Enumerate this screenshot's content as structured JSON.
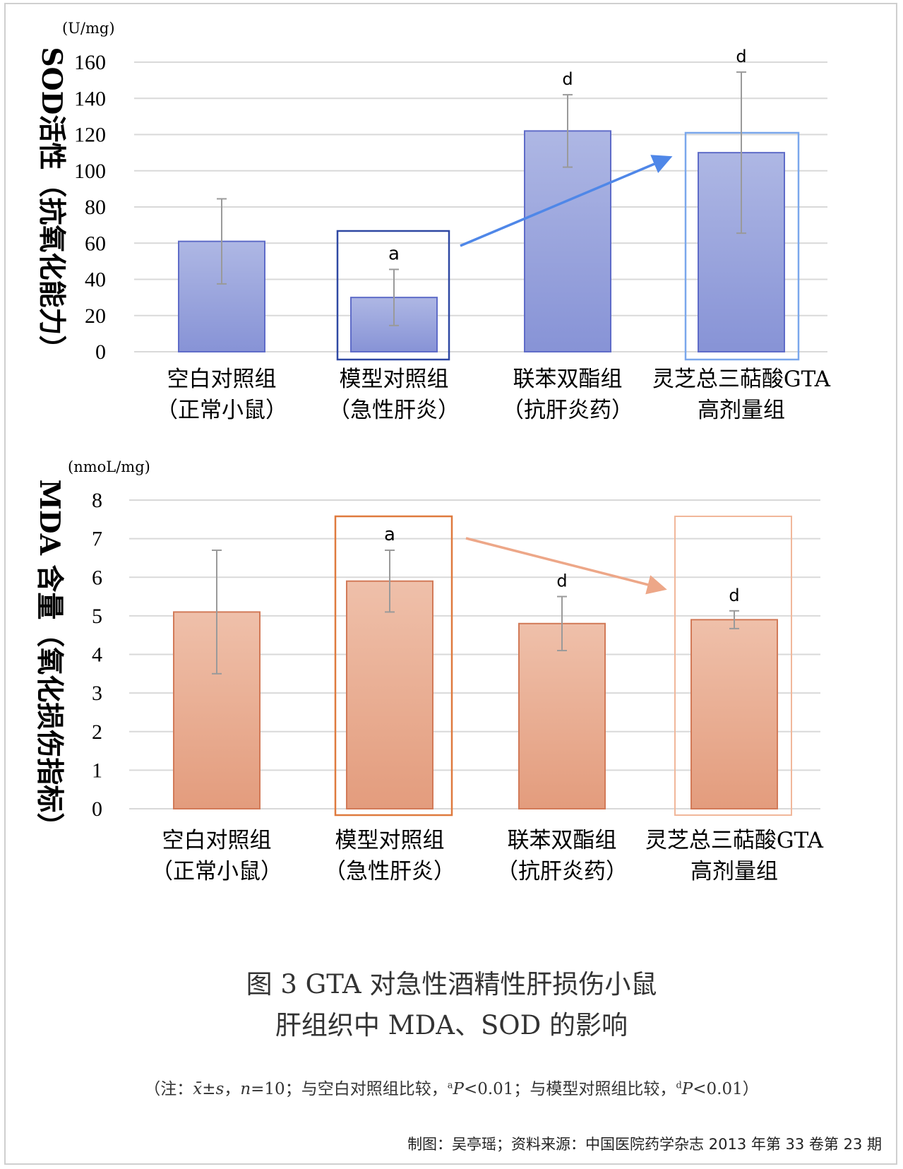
{
  "chart_data": [
    {
      "type": "bar",
      "unit": "(U/mg)",
      "ylabel": "SOD活性（抗氧化能力）",
      "ylim": [
        0,
        160
      ],
      "yticks": [
        0,
        20,
        40,
        60,
        80,
        100,
        120,
        140,
        160
      ],
      "categories": [
        [
          "空白对照组",
          "（正常小鼠）"
        ],
        [
          "模型对照组",
          "（急性肝炎）"
        ],
        [
          "联苯双酯组",
          "（抗肝炎药）"
        ],
        [
          "灵芝总三萜酸GTA",
          "高剂量组"
        ]
      ],
      "values": [
        61,
        30,
        122,
        110
      ],
      "errors": [
        23.5,
        15.5,
        20,
        44.5
      ],
      "marks": [
        "",
        "a",
        "d",
        "d"
      ],
      "grid": true,
      "highlight_boxes": [
        1,
        3
      ],
      "arrow": "from category 2 box to category 4 box",
      "colors": {
        "bar_top": "#aeb7e4",
        "bar_bottom": "#8793d6",
        "bar_border": "#5f6cc8",
        "error": "#9a9a9a",
        "box1": "#2f48a3",
        "box2": "#7aa7ec",
        "arrow": "#4f87e8"
      }
    },
    {
      "type": "bar",
      "unit": "(nmoL/mg)",
      "ylabel": "MDA 含量（氧化损伤指标）",
      "ylim": [
        0,
        8
      ],
      "yticks": [
        0,
        1,
        2,
        3,
        4,
        5,
        6,
        7,
        8
      ],
      "categories": [
        [
          "空白对照组",
          "（正常小鼠）"
        ],
        [
          "模型对照组",
          "（急性肝炎）"
        ],
        [
          "联苯双酯组",
          "（抗肝炎药）"
        ],
        [
          "灵芝总三萜酸GTA",
          "高剂量组"
        ]
      ],
      "values": [
        5.1,
        5.9,
        4.8,
        4.9
      ],
      "errors": [
        1.6,
        0.8,
        0.7,
        0.23
      ],
      "marks": [
        "",
        "a",
        "d",
        "d"
      ],
      "grid": true,
      "highlight_boxes": [
        1,
        3
      ],
      "arrow": "from category 2 box to category 4 box",
      "colors": {
        "bar_top": "#efc0aa",
        "bar_bottom": "#e39c7d",
        "bar_border": "#d27a58",
        "error": "#9a9a9a",
        "box1": "#df7a3e",
        "box2": "#f1b79a",
        "arrow": "#eda788"
      }
    }
  ],
  "caption": {
    "line1": "图 3  GTA 对急性酒精性肝损伤小鼠",
    "line2": "肝组织中 MDA、SOD 的影响"
  },
  "note": {
    "open": "（注：",
    "xbar": "x̄",
    "pm": "±",
    "s": "s",
    "comma1": "，",
    "n": "n",
    "eq": "=10；与空白对照组比较，",
    "sup_a": "a",
    "P1": "P",
    "lt1": "<0.01；与模型对照组比较，",
    "sup_d": "d",
    "P2": "P",
    "lt2": "<0.01）"
  },
  "credit": "制图：吴亭瑶；资料来源：中国医院药学杂志 2013 年第 33 卷第 23 期"
}
